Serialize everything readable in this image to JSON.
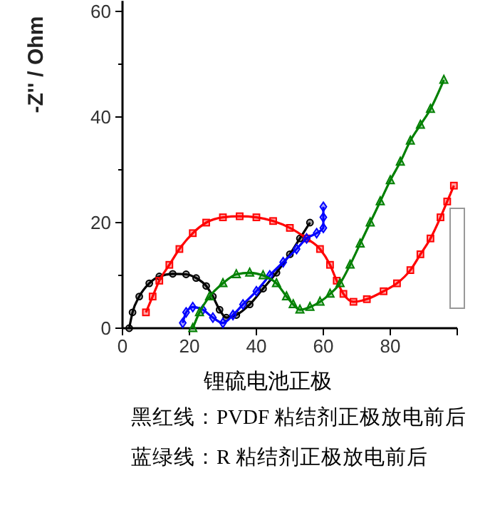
{
  "chart_data": {
    "type": "line",
    "ylabel": "-Z'' / Ohm",
    "xlim": [
      0,
      100
    ],
    "xticks": [
      0,
      20,
      40,
      60,
      80,
      {
        "value": 100,
        "label": null
      }
    ],
    "ylim": [
      0,
      62
    ],
    "yticks": [
      0,
      {
        "value": 10,
        "label": null
      },
      20,
      {
        "value": 30,
        "label": null
      },
      40,
      {
        "value": 50,
        "label": null
      },
      60
    ],
    "grid": false,
    "line_style": "solid",
    "series": [
      {
        "color": "#000000",
        "marker": "circle",
        "x": [
          2,
          3,
          5,
          8,
          11,
          15,
          19,
          22,
          25,
          27,
          29,
          31,
          34,
          38,
          42,
          46,
          50,
          53,
          56
        ],
        "values": [
          0,
          3,
          6,
          8.5,
          9.8,
          10.3,
          10.2,
          9.5,
          8,
          6,
          3.5,
          2,
          2.5,
          4.5,
          7.5,
          10.5,
          14,
          17,
          20
        ]
      },
      {
        "color": "#ff0000",
        "marker": "square",
        "x": [
          7,
          9,
          11,
          14,
          17,
          21,
          25,
          30,
          35,
          40,
          45,
          50,
          55,
          59,
          62,
          64,
          66,
          69,
          73,
          78,
          82,
          86,
          89,
          92,
          95,
          97,
          99
        ],
        "values": [
          3,
          6,
          9,
          12,
          15,
          18,
          20,
          21,
          21.2,
          21,
          20.3,
          19,
          17,
          15,
          12,
          9,
          6.5,
          5,
          5.5,
          7,
          8.5,
          11,
          14,
          17,
          21,
          24,
          27
        ]
      },
      {
        "color": "#0000ff",
        "marker": "diamond",
        "x": [
          18,
          19,
          21,
          24,
          27,
          30,
          33,
          36,
          40,
          44,
          48,
          52,
          55,
          58,
          60,
          60,
          60
        ],
        "values": [
          1,
          3,
          4,
          3.5,
          2,
          1,
          2.5,
          4.5,
          7,
          10,
          12.5,
          15,
          17,
          18,
          19,
          21,
          23
        ]
      },
      {
        "color": "#008000",
        "marker": "triangle",
        "x": [
          21,
          23,
          26,
          30,
          34,
          38,
          42,
          46,
          49,
          51,
          53,
          56,
          59,
          62,
          65,
          68,
          71,
          74,
          77,
          80,
          83,
          86,
          89,
          92,
          96
        ],
        "values": [
          0,
          3,
          6,
          8.5,
          10.2,
          10.5,
          10,
          8.5,
          6,
          4.5,
          3.5,
          4,
          5,
          6.5,
          8.5,
          12,
          16,
          20,
          24,
          28,
          31.5,
          35.5,
          38.5,
          41.5,
          47
        ]
      }
    ],
    "annotations": [
      "锂硫电池正极",
      "黑红线：PVDF 粘结剂正极放电前后",
      "蓝绿线：R 粘结剂正极放电前后"
    ]
  }
}
